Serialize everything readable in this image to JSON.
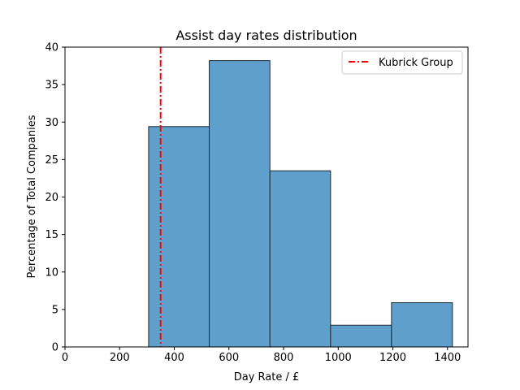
{
  "chart_data": {
    "type": "bar",
    "title": "Assist day rates distribution",
    "xlabel": "Day Rate / £",
    "ylabel": "Percentage of Total Companies",
    "xlim": [
      0,
      1475
    ],
    "ylim": [
      0,
      40
    ],
    "xticks": [
      0,
      200,
      400,
      600,
      800,
      1000,
      1200,
      1400
    ],
    "yticks": [
      0,
      5,
      10,
      15,
      20,
      25,
      30,
      35,
      40
    ],
    "bins": [
      {
        "x0": 306,
        "x1": 528,
        "value": 29.4
      },
      {
        "x0": 528,
        "x1": 750,
        "value": 38.2
      },
      {
        "x0": 750,
        "x1": 972,
        "value": 23.5
      },
      {
        "x0": 972,
        "x1": 1195,
        "value": 2.9
      },
      {
        "x0": 1195,
        "x1": 1418,
        "value": 5.9
      }
    ],
    "bar_color": "#5f9fcc",
    "bar_edge_color": "#1f2a33",
    "reference_line": {
      "name": "Kubrick Group",
      "x": 350,
      "color": "#ff0000",
      "style": "dash-dot"
    },
    "legend_position": "top-right",
    "grid": false
  }
}
